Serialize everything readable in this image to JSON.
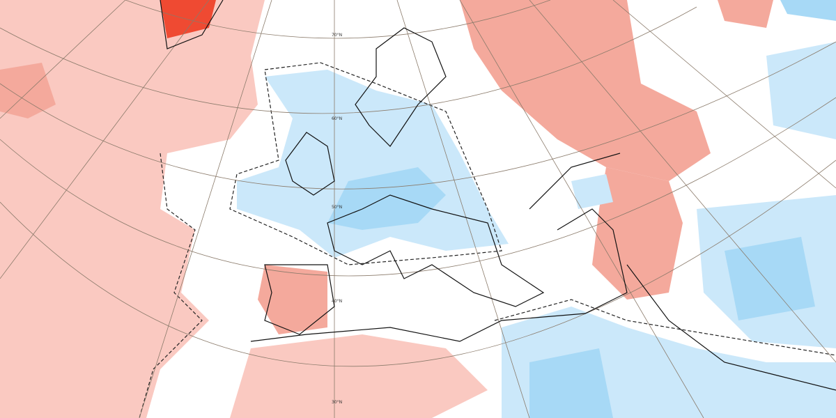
{
  "map": {
    "latitude_labels": [
      "70°N",
      "60°N",
      "50°N",
      "40°N",
      "30°N"
    ]
  }
}
